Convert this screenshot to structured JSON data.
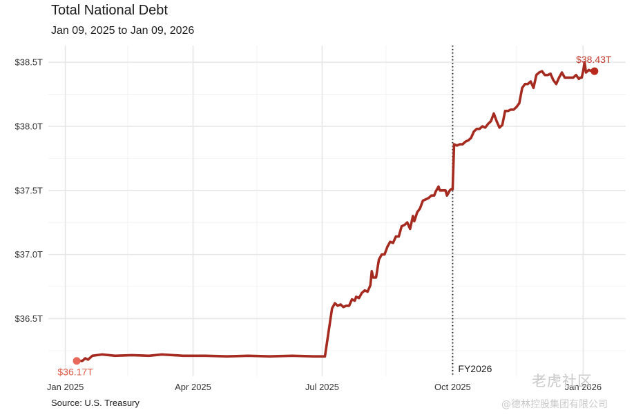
{
  "chart_data": {
    "type": "line",
    "title": "Total National Debt",
    "subtitle": "Jan 09, 2025 to Jan 09, 2026",
    "source": "Source: U.S. Treasury",
    "x_range": [
      "2024-12-20",
      "2026-01-31"
    ],
    "y_range": [
      36.05,
      38.63
    ],
    "y_ticks": [
      {
        "value": 36.5,
        "label": "$36.5T"
      },
      {
        "value": 37.0,
        "label": "$37.0T"
      },
      {
        "value": 37.5,
        "label": "$37.5T"
      },
      {
        "value": 38.0,
        "label": "$38.0T"
      },
      {
        "value": 38.5,
        "label": "$38.5T"
      }
    ],
    "x_ticks": [
      {
        "date": "2025-01-01",
        "label": "Jan 2025"
      },
      {
        "date": "2025-04-01",
        "label": "Apr 2025"
      },
      {
        "date": "2025-07-01",
        "label": "Jul 2025"
      },
      {
        "date": "2025-10-01",
        "label": "Oct 2025"
      },
      {
        "date": "2026-01-01",
        "label": "Jan 2026"
      }
    ],
    "grid": true,
    "colors": {
      "line": "#a52a1f",
      "start_marker": "#e8695a",
      "end_marker": "#b8281c",
      "start_label": "#e25b48",
      "end_label": "#c0392b",
      "reference_line": "#1a1a1a"
    },
    "reference_line": {
      "date": "2025-10-01",
      "label": "FY2026",
      "style": "dotted"
    },
    "start_point": {
      "date": "2025-01-09",
      "value": 36.17,
      "label": "$36.17T"
    },
    "end_point": {
      "date": "2026-01-09",
      "value": 38.43,
      "label": "$38.43T"
    },
    "series": [
      {
        "points": [
          [
            "2025-01-09",
            36.17
          ],
          [
            "2025-01-13",
            36.17
          ],
          [
            "2025-01-15",
            36.19
          ],
          [
            "2025-01-17",
            36.18
          ],
          [
            "2025-01-20",
            36.21
          ],
          [
            "2025-01-27",
            36.22
          ],
          [
            "2025-02-05",
            36.21
          ],
          [
            "2025-02-17",
            36.215
          ],
          [
            "2025-03-01",
            36.21
          ],
          [
            "2025-03-10",
            36.22
          ],
          [
            "2025-03-25",
            36.21
          ],
          [
            "2025-04-10",
            36.21
          ],
          [
            "2025-04-25",
            36.205
          ],
          [
            "2025-05-10",
            36.21
          ],
          [
            "2025-05-25",
            36.205
          ],
          [
            "2025-06-10",
            36.21
          ],
          [
            "2025-06-25",
            36.205
          ],
          [
            "2025-07-03",
            36.205
          ],
          [
            "2025-07-08",
            36.58
          ],
          [
            "2025-07-10",
            36.62
          ],
          [
            "2025-07-12",
            36.6
          ],
          [
            "2025-07-14",
            36.61
          ],
          [
            "2025-07-16",
            36.59
          ],
          [
            "2025-07-18",
            36.6
          ],
          [
            "2025-07-20",
            36.6
          ],
          [
            "2025-07-22",
            36.65
          ],
          [
            "2025-07-24",
            36.64
          ],
          [
            "2025-07-25",
            36.67
          ],
          [
            "2025-07-27",
            36.66
          ],
          [
            "2025-07-29",
            36.7
          ],
          [
            "2025-07-31",
            36.72
          ],
          [
            "2025-08-02",
            36.71
          ],
          [
            "2025-08-04",
            36.76
          ],
          [
            "2025-08-05",
            36.87
          ],
          [
            "2025-08-06",
            36.82
          ],
          [
            "2025-08-08",
            36.82
          ],
          [
            "2025-08-10",
            36.96
          ],
          [
            "2025-08-12",
            37.0
          ],
          [
            "2025-08-14",
            37.0
          ],
          [
            "2025-08-16",
            37.06
          ],
          [
            "2025-08-18",
            37.1
          ],
          [
            "2025-08-20",
            37.09
          ],
          [
            "2025-08-22",
            37.14
          ],
          [
            "2025-08-24",
            37.14
          ],
          [
            "2025-08-26",
            37.22
          ],
          [
            "2025-08-28",
            37.23
          ],
          [
            "2025-08-30",
            37.25
          ],
          [
            "2025-09-01",
            37.2
          ],
          [
            "2025-09-03",
            37.3
          ],
          [
            "2025-09-04",
            37.26
          ],
          [
            "2025-09-06",
            37.33
          ],
          [
            "2025-09-08",
            37.36
          ],
          [
            "2025-09-10",
            37.42
          ],
          [
            "2025-09-12",
            37.43
          ],
          [
            "2025-09-14",
            37.44
          ],
          [
            "2025-09-16",
            37.46
          ],
          [
            "2025-09-18",
            37.46
          ],
          [
            "2025-09-19",
            37.49
          ],
          [
            "2025-09-21",
            37.53
          ],
          [
            "2025-09-22",
            37.5
          ],
          [
            "2025-09-24",
            37.5
          ],
          [
            "2025-09-26",
            37.5
          ],
          [
            "2025-09-27",
            37.46
          ],
          [
            "2025-09-29",
            37.5
          ],
          [
            "2025-09-30",
            37.51
          ],
          [
            "2025-10-01",
            37.51
          ],
          [
            "2025-10-02",
            37.86
          ],
          [
            "2025-10-04",
            37.85
          ],
          [
            "2025-10-06",
            37.86
          ],
          [
            "2025-10-08",
            37.86
          ],
          [
            "2025-10-10",
            37.88
          ],
          [
            "2025-10-12",
            37.89
          ],
          [
            "2025-10-14",
            37.91
          ],
          [
            "2025-10-16",
            37.96
          ],
          [
            "2025-10-18",
            37.98
          ],
          [
            "2025-10-20",
            37.98
          ],
          [
            "2025-10-22",
            38.0
          ],
          [
            "2025-10-24",
            37.99
          ],
          [
            "2025-10-26",
            38.02
          ],
          [
            "2025-10-28",
            38.04
          ],
          [
            "2025-10-30",
            38.1
          ],
          [
            "2025-11-01",
            38.04
          ],
          [
            "2025-11-03",
            37.99
          ],
          [
            "2025-11-05",
            38.01
          ],
          [
            "2025-11-07",
            38.12
          ],
          [
            "2025-11-09",
            38.12
          ],
          [
            "2025-11-11",
            38.13
          ],
          [
            "2025-11-13",
            38.13
          ],
          [
            "2025-11-15",
            38.15
          ],
          [
            "2025-11-17",
            38.18
          ],
          [
            "2025-11-19",
            38.3
          ],
          [
            "2025-11-21",
            38.33
          ],
          [
            "2025-11-23",
            38.33
          ],
          [
            "2025-11-25",
            38.35
          ],
          [
            "2025-11-27",
            38.3
          ],
          [
            "2025-11-29",
            38.4
          ],
          [
            "2025-12-01",
            38.42
          ],
          [
            "2025-12-03",
            38.43
          ],
          [
            "2025-12-05",
            38.4
          ],
          [
            "2025-12-07",
            38.4
          ],
          [
            "2025-12-09",
            38.41
          ],
          [
            "2025-12-11",
            38.36
          ],
          [
            "2025-12-13",
            38.33
          ],
          [
            "2025-12-15",
            38.38
          ],
          [
            "2025-12-17",
            38.42
          ],
          [
            "2025-12-19",
            38.38
          ],
          [
            "2025-12-21",
            38.38
          ],
          [
            "2025-12-23",
            38.38
          ],
          [
            "2025-12-25",
            38.38
          ],
          [
            "2025-12-27",
            38.4
          ],
          [
            "2025-12-29",
            38.37
          ],
          [
            "2025-12-30",
            38.38
          ],
          [
            "2025-12-31",
            38.38
          ],
          [
            "2026-01-01",
            38.43
          ],
          [
            "2026-01-02",
            38.5
          ],
          [
            "2026-01-03",
            38.42
          ],
          [
            "2026-01-05",
            38.44
          ],
          [
            "2026-01-07",
            38.43
          ],
          [
            "2026-01-09",
            38.43
          ]
        ]
      }
    ]
  },
  "watermark": {
    "top": "老虎社区",
    "bottom": "@德林控股集团有限公司"
  }
}
